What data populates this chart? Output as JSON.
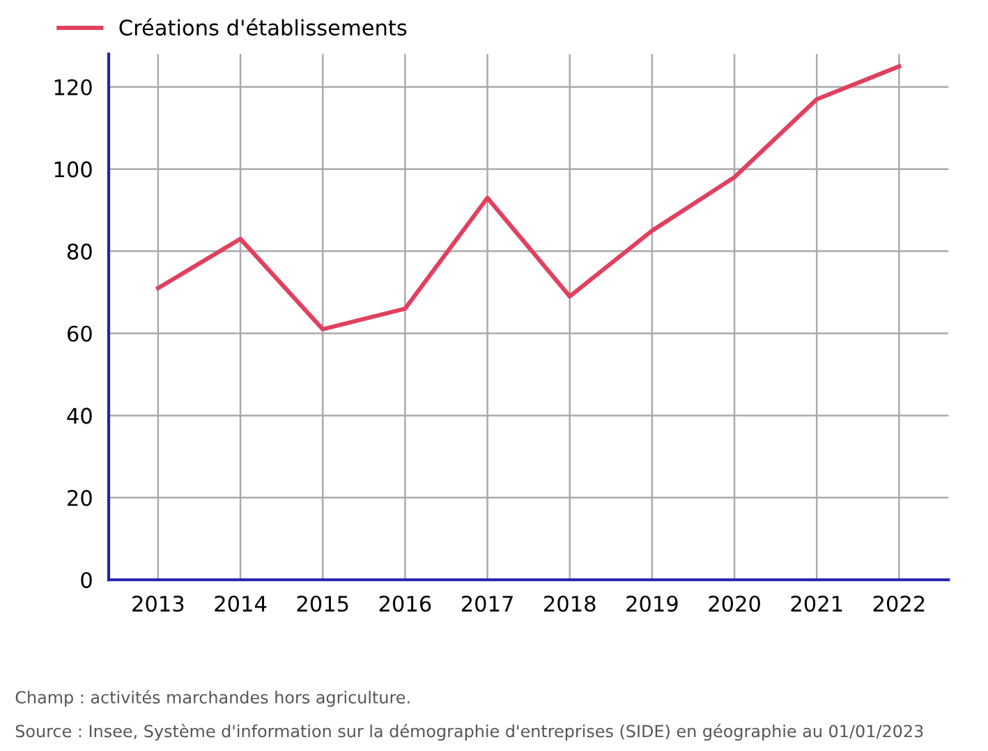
{
  "chart_data": {
    "type": "line",
    "categories": [
      "2013",
      "2014",
      "2015",
      "2016",
      "2017",
      "2018",
      "2019",
      "2020",
      "2021",
      "2022"
    ],
    "series": [
      {
        "name": "Créations d'établissements",
        "color": "#e0415f",
        "values": [
          71,
          83,
          61,
          66,
          93,
          69,
          85,
          98,
          117,
          125
        ]
      }
    ],
    "ylim": [
      0,
      128
    ],
    "yticks": [
      0,
      20,
      40,
      60,
      80,
      100,
      120
    ],
    "grid": true,
    "legend": "top left",
    "line_style": "solid",
    "annotations": [
      "Champ : activités marchandes hors agriculture.",
      "Source : Insee, Système d'information sur la démographie d'entreprises (SIDE) en géographie au 01/01/2023"
    ]
  }
}
